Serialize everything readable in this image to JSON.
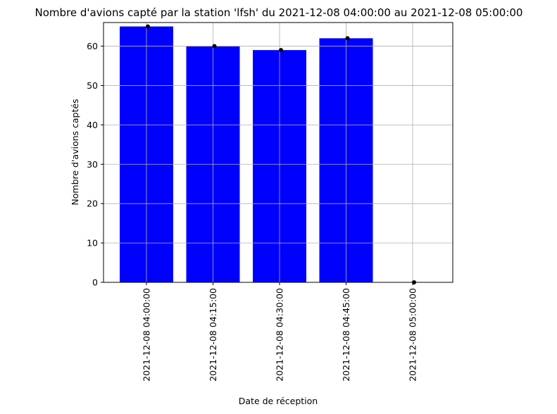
{
  "chart_data": {
    "type": "bar",
    "title": "Nombre d'avions capté par la station 'lfsh' du 2021-12-08 04:00:00 au 2021-12-08 05:00:00",
    "xlabel": "Date de réception",
    "ylabel": "Nombre d'avions captés",
    "categories": [
      "2021-12-08 04:00:00",
      "2021-12-08 04:15:00",
      "2021-12-08 04:30:00",
      "2021-12-08 04:45:00",
      "2021-12-08 05:00:00"
    ],
    "values": [
      65,
      60,
      59,
      62,
      0
    ],
    "ylim": [
      0,
      66
    ],
    "yticks": [
      0,
      10,
      20,
      30,
      40,
      50,
      60
    ],
    "grid": true,
    "bar_color": "#0000ff",
    "marker_color": "#000000"
  }
}
